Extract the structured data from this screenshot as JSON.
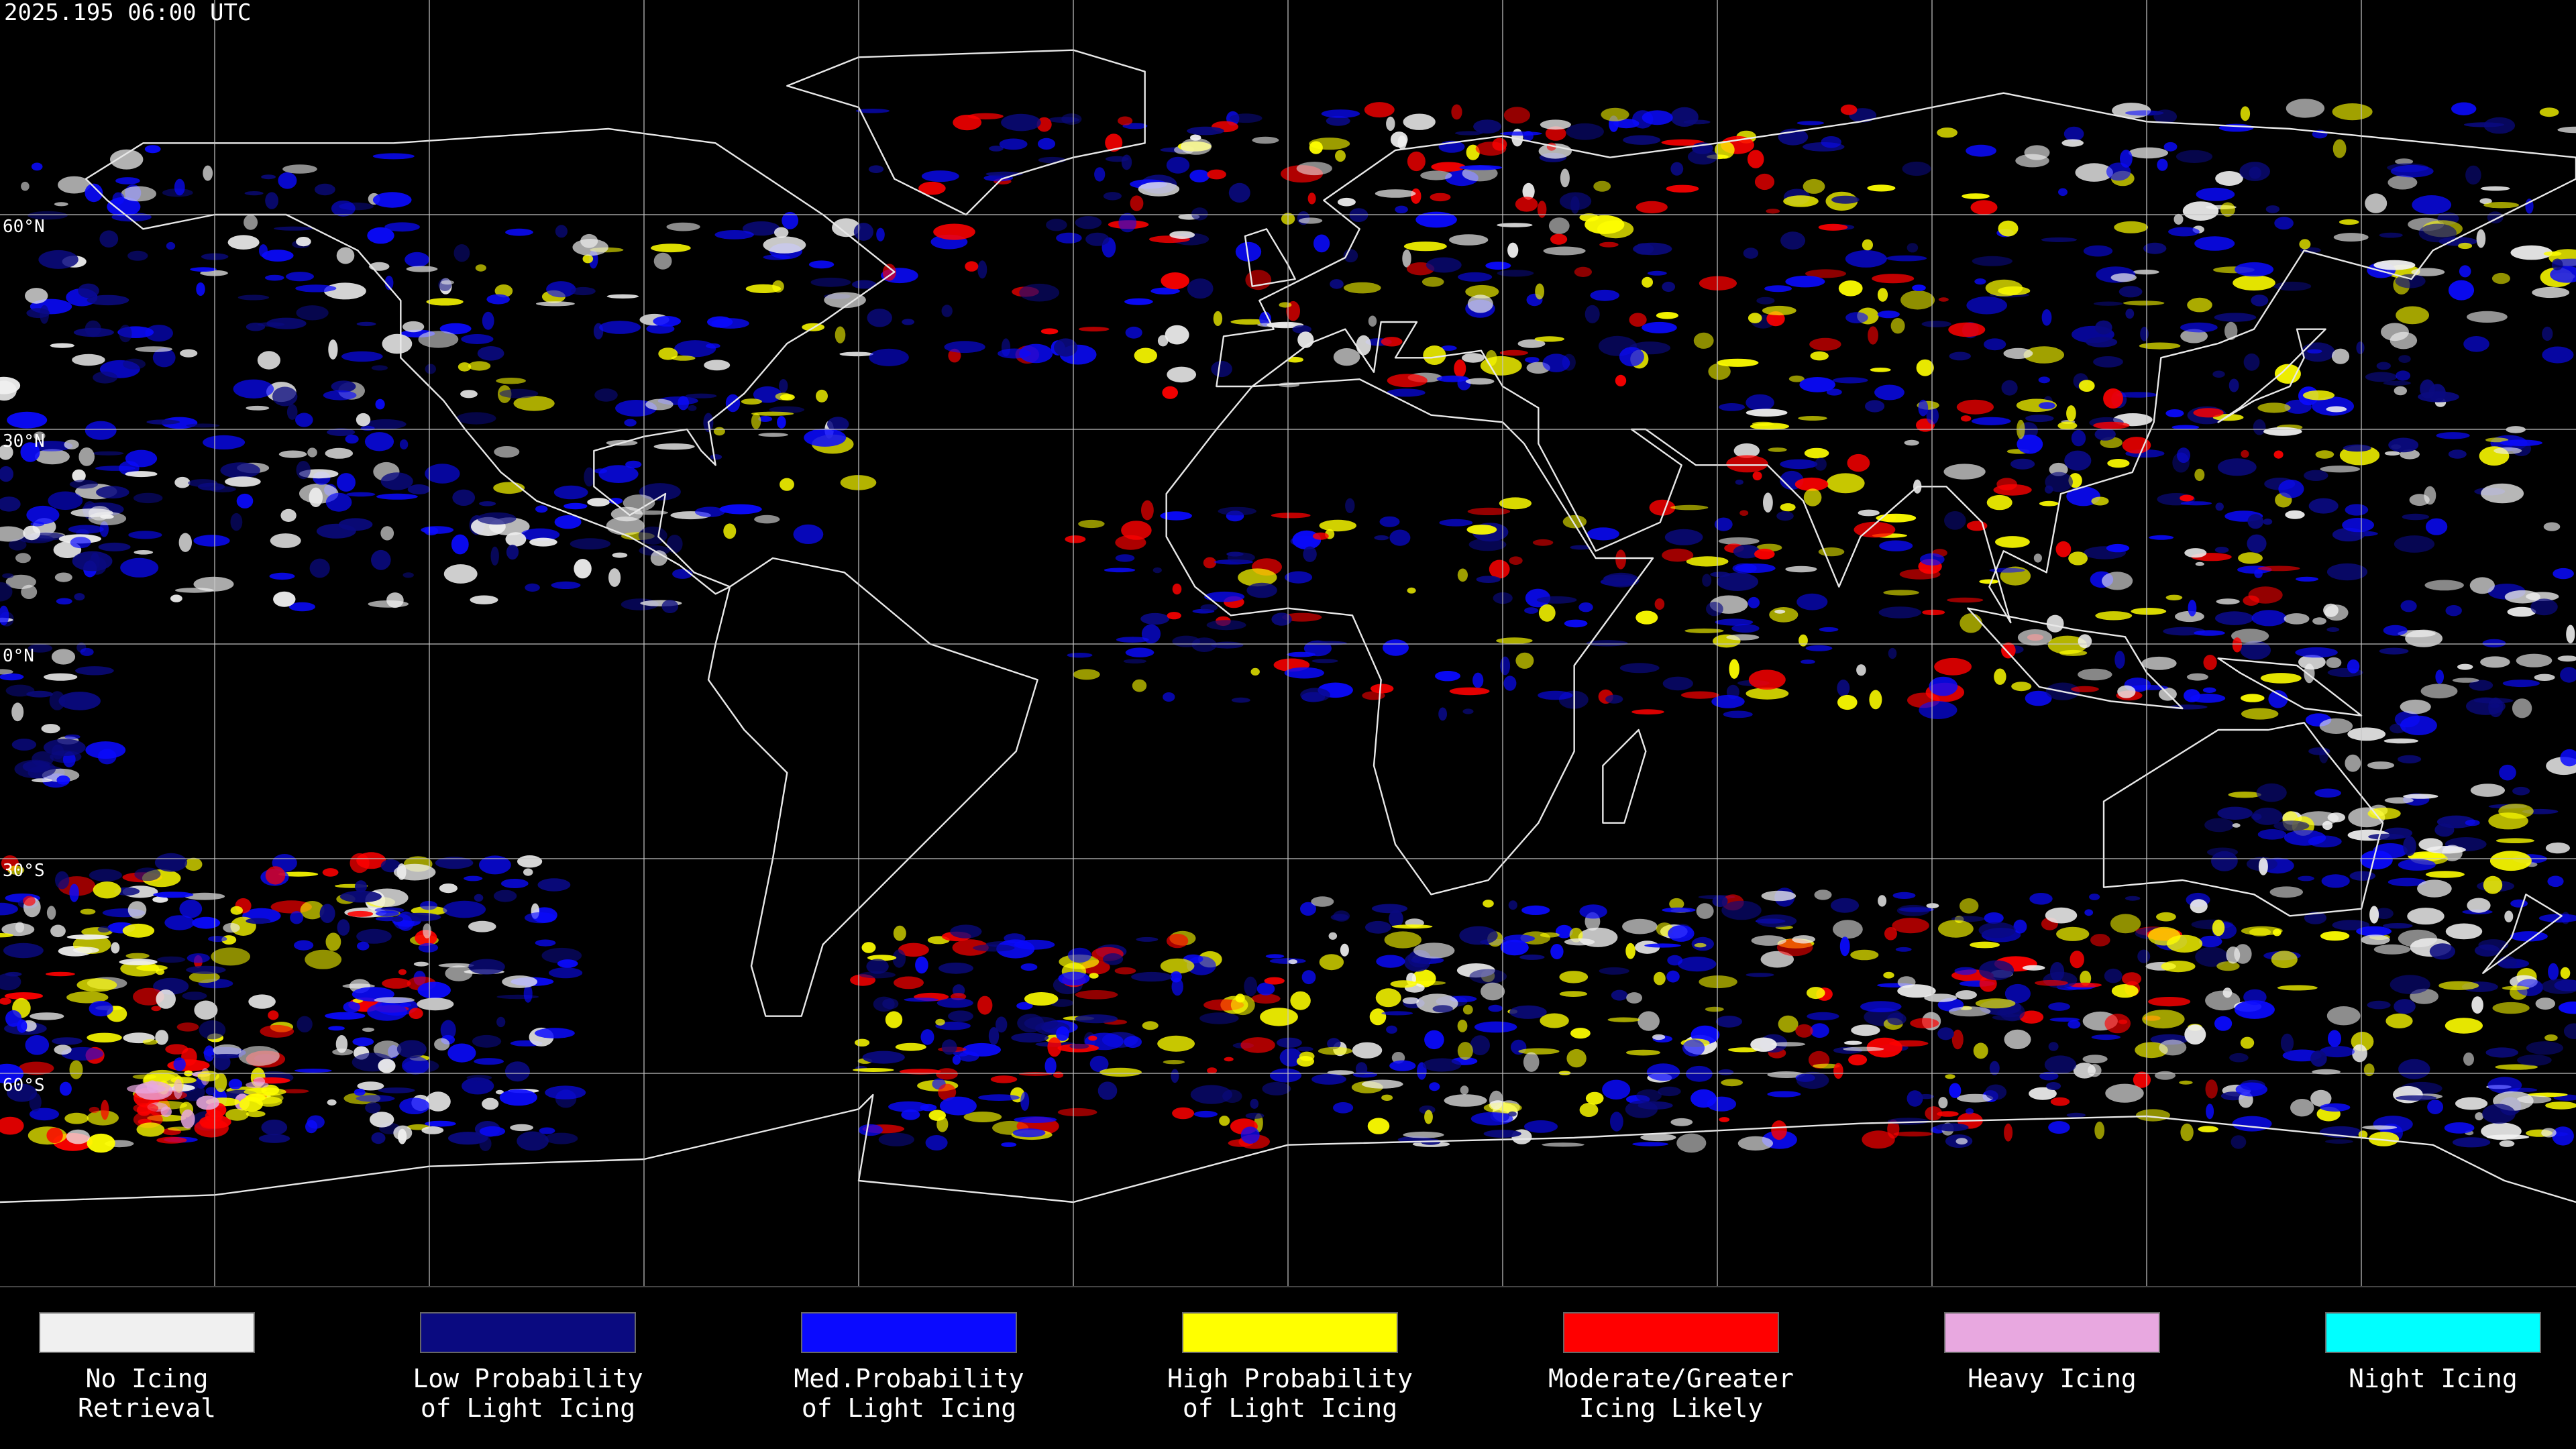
{
  "header": {
    "timestamp": "2025.195 06:00 UTC"
  },
  "map": {
    "latitude_labels": [
      "60°N",
      "30°N",
      "0°N",
      "30°S",
      "60°S"
    ]
  },
  "legend": {
    "items": [
      {
        "label": [
          "No Icing",
          "Retrieval"
        ],
        "color": "#f0f0f0"
      },
      {
        "label": [
          "Low Probability",
          "of Light Icing"
        ],
        "color": "#0a0a80"
      },
      {
        "label": [
          "Med.Probability",
          "of Light Icing"
        ],
        "color": "#0a0aff"
      },
      {
        "label": [
          "High Probability",
          "of Light Icing"
        ],
        "color": "#ffff00"
      },
      {
        "label": [
          "Moderate/Greater",
          "Icing Likely"
        ],
        "color": "#ff0000"
      },
      {
        "label": [
          "Heavy Icing"
        ],
        "color": "#e8a8e0"
      },
      {
        "label": [
          "Night Icing"
        ],
        "color": "#00ffff"
      }
    ]
  }
}
